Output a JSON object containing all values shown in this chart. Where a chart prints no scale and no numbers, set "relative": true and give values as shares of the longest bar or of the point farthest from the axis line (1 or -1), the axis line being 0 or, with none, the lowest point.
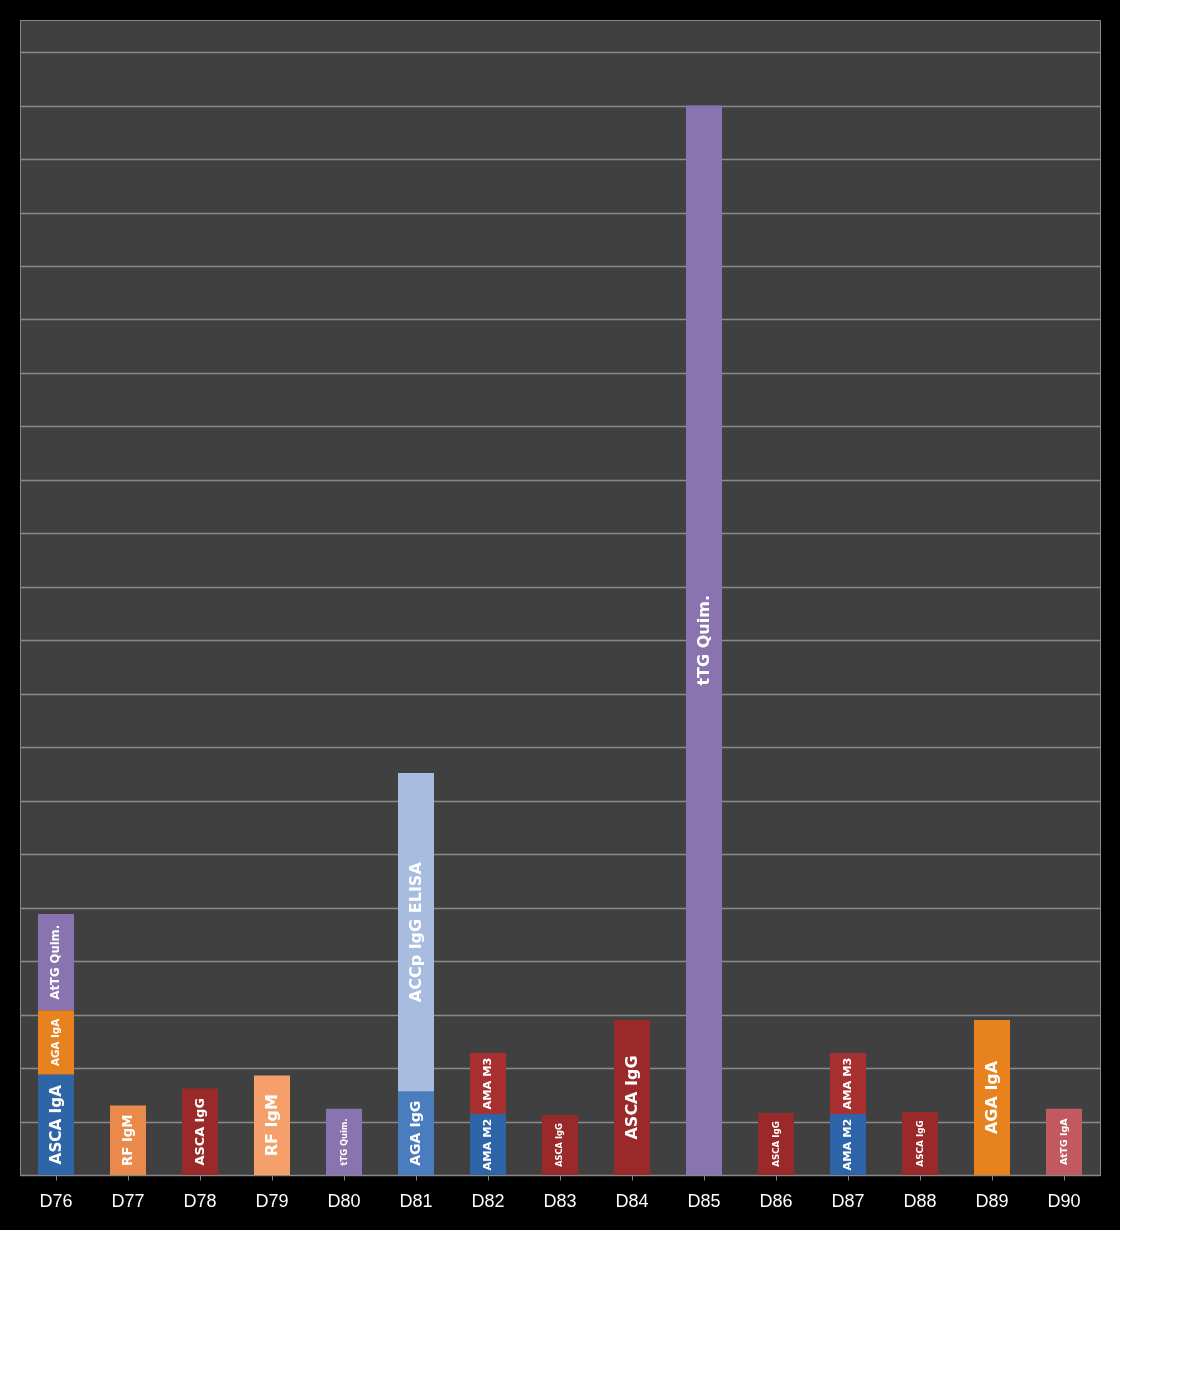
{
  "chart_data": {
    "type": "bar",
    "stacked": true,
    "relative": true,
    "grid": "y",
    "categories": [
      "D76",
      "D77",
      "D78",
      "D79",
      "D80",
      "D81",
      "D82",
      "D83",
      "D84",
      "D85",
      "D86",
      "D87",
      "D88",
      "D89",
      "D90"
    ],
    "series": [
      {
        "name": "ASCA IgA",
        "color": "#2e64a8",
        "values": [
          0.094,
          null,
          null,
          null,
          null,
          null,
          null,
          null,
          null,
          null,
          null,
          null,
          null,
          null,
          null
        ]
      },
      {
        "name": "AGA IgA",
        "color": "#e8821e",
        "values": [
          0.06,
          null,
          null,
          null,
          null,
          null,
          null,
          null,
          null,
          null,
          null,
          null,
          null,
          0.145,
          null
        ]
      },
      {
        "name": "AtTG Quim.",
        "color": "#8a74b0",
        "values": [
          0.09,
          null,
          null,
          null,
          null,
          null,
          null,
          null,
          null,
          null,
          null,
          null,
          null,
          null,
          null
        ]
      },
      {
        "name": "RF IgM",
        "color": "#e98a4a",
        "colors": [
          null,
          null,
          null,
          "#f5a06a",
          null,
          null,
          null,
          null,
          null,
          null,
          null,
          null,
          null,
          null,
          null
        ],
        "values": [
          null,
          0.065,
          null,
          0.093,
          null,
          null,
          null,
          null,
          null,
          null,
          null,
          null,
          null,
          null,
          null
        ]
      },
      {
        "name": "ASCA IgG",
        "color": "#9a2a2a",
        "values": [
          null,
          null,
          0.081,
          null,
          null,
          null,
          null,
          0.056,
          0.145,
          null,
          0.058,
          null,
          0.059,
          null,
          null
        ]
      },
      {
        "name": "tTG Quim.",
        "color": "#8a74b0",
        "values": [
          null,
          null,
          null,
          null,
          0.062,
          null,
          null,
          null,
          null,
          1,
          null,
          null,
          null,
          null,
          null
        ]
      },
      {
        "name": "AGA IgG",
        "color": "#4a7cc0",
        "values": [
          null,
          null,
          null,
          null,
          null,
          0.078,
          null,
          null,
          null,
          null,
          null,
          null,
          null,
          null,
          null
        ]
      },
      {
        "name": "ACCp IgG ELISA",
        "color": "#a8bce0",
        "values": [
          null,
          null,
          null,
          null,
          null,
          0.298,
          null,
          null,
          null,
          null,
          null,
          null,
          null,
          null,
          null
        ]
      },
      {
        "name": "AMA M2",
        "color": "#2e64a8",
        "values": [
          null,
          null,
          null,
          null,
          null,
          null,
          0.057,
          null,
          null,
          null,
          null,
          0.057,
          null,
          null,
          null
        ]
      },
      {
        "name": "AMA M3",
        "color": "#a83030",
        "values": [
          null,
          null,
          null,
          null,
          null,
          null,
          0.057,
          null,
          null,
          null,
          null,
          0.057,
          null,
          null,
          null
        ]
      },
      {
        "name": "AtTG IgA",
        "color": "#c05a60",
        "values": [
          null,
          null,
          null,
          null,
          null,
          null,
          null,
          null,
          null,
          null,
          null,
          null,
          null,
          null,
          0.062
        ]
      }
    ]
  }
}
